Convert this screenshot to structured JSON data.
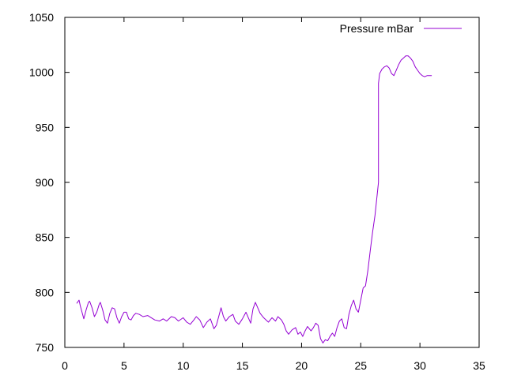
{
  "chart_data": {
    "type": "line",
    "xlim": [
      0,
      35
    ],
    "ylim": [
      750,
      1050
    ],
    "xticks": [
      0,
      5,
      10,
      15,
      20,
      25,
      30,
      35
    ],
    "yticks": [
      750,
      800,
      850,
      900,
      950,
      1000,
      1050
    ],
    "grid": false,
    "legend_position": "top-right",
    "series": [
      {
        "name": "Pressure mBar",
        "color": "#9400d3",
        "points": [
          [
            1.0,
            790
          ],
          [
            1.2,
            793
          ],
          [
            1.3,
            788
          ],
          [
            1.5,
            780
          ],
          [
            1.6,
            776
          ],
          [
            1.8,
            784
          ],
          [
            2.0,
            791
          ],
          [
            2.1,
            792
          ],
          [
            2.3,
            786
          ],
          [
            2.5,
            778
          ],
          [
            2.7,
            782
          ],
          [
            2.9,
            789
          ],
          [
            3.0,
            791
          ],
          [
            3.2,
            784
          ],
          [
            3.4,
            775
          ],
          [
            3.6,
            772
          ],
          [
            3.8,
            781
          ],
          [
            4.0,
            786
          ],
          [
            4.2,
            785
          ],
          [
            4.4,
            777
          ],
          [
            4.6,
            772
          ],
          [
            4.8,
            778
          ],
          [
            5.0,
            782
          ],
          [
            5.2,
            782
          ],
          [
            5.4,
            776
          ],
          [
            5.6,
            775
          ],
          [
            5.8,
            779
          ],
          [
            6.0,
            781
          ],
          [
            6.3,
            780
          ],
          [
            6.6,
            778
          ],
          [
            7.0,
            779
          ],
          [
            7.3,
            777
          ],
          [
            7.6,
            775
          ],
          [
            8.0,
            774
          ],
          [
            8.3,
            776
          ],
          [
            8.6,
            774
          ],
          [
            9.0,
            778
          ],
          [
            9.3,
            777
          ],
          [
            9.6,
            774
          ],
          [
            10.0,
            777
          ],
          [
            10.3,
            773
          ],
          [
            10.6,
            771
          ],
          [
            10.9,
            775
          ],
          [
            11.1,
            778
          ],
          [
            11.4,
            775
          ],
          [
            11.7,
            768
          ],
          [
            12.0,
            773
          ],
          [
            12.3,
            776
          ],
          [
            12.6,
            767
          ],
          [
            12.8,
            770
          ],
          [
            13.0,
            778
          ],
          [
            13.2,
            786
          ],
          [
            13.4,
            778
          ],
          [
            13.6,
            774
          ],
          [
            13.9,
            778
          ],
          [
            14.2,
            780
          ],
          [
            14.4,
            774
          ],
          [
            14.7,
            771
          ],
          [
            15.0,
            776
          ],
          [
            15.3,
            782
          ],
          [
            15.5,
            777
          ],
          [
            15.7,
            772
          ],
          [
            15.9,
            785
          ],
          [
            16.1,
            791
          ],
          [
            16.3,
            786
          ],
          [
            16.5,
            781
          ],
          [
            16.8,
            777
          ],
          [
            17.0,
            775
          ],
          [
            17.2,
            773
          ],
          [
            17.5,
            777
          ],
          [
            17.8,
            774
          ],
          [
            18.0,
            778
          ],
          [
            18.3,
            775
          ],
          [
            18.5,
            771
          ],
          [
            18.7,
            765
          ],
          [
            18.9,
            762
          ],
          [
            19.2,
            766
          ],
          [
            19.5,
            768
          ],
          [
            19.7,
            762
          ],
          [
            19.9,
            764
          ],
          [
            20.1,
            760
          ],
          [
            20.3,
            765
          ],
          [
            20.5,
            769
          ],
          [
            20.8,
            765
          ],
          [
            21.0,
            768
          ],
          [
            21.2,
            772
          ],
          [
            21.4,
            770
          ],
          [
            21.6,
            758
          ],
          [
            21.8,
            754
          ],
          [
            22.0,
            757
          ],
          [
            22.2,
            756
          ],
          [
            22.4,
            760
          ],
          [
            22.6,
            763
          ],
          [
            22.8,
            760
          ],
          [
            23.0,
            768
          ],
          [
            23.2,
            774
          ],
          [
            23.4,
            776
          ],
          [
            23.6,
            768
          ],
          [
            23.8,
            767
          ],
          [
            24.0,
            780
          ],
          [
            24.2,
            788
          ],
          [
            24.4,
            793
          ],
          [
            24.6,
            785
          ],
          [
            24.8,
            782
          ],
          [
            25.0,
            793
          ],
          [
            25.2,
            804
          ],
          [
            25.4,
            806
          ],
          [
            25.6,
            820
          ],
          [
            25.8,
            838
          ],
          [
            26.0,
            855
          ],
          [
            26.2,
            870
          ],
          [
            26.5,
            900
          ],
          [
            26.5,
            990
          ],
          [
            26.6,
            999
          ],
          [
            26.8,
            1003
          ],
          [
            27.0,
            1005
          ],
          [
            27.2,
            1006
          ],
          [
            27.4,
            1004
          ],
          [
            27.6,
            999
          ],
          [
            27.8,
            997
          ],
          [
            28.0,
            1002
          ],
          [
            28.2,
            1007
          ],
          [
            28.4,
            1011
          ],
          [
            28.6,
            1013
          ],
          [
            28.8,
            1015
          ],
          [
            29.0,
            1015
          ],
          [
            29.2,
            1013
          ],
          [
            29.4,
            1010
          ],
          [
            29.6,
            1005
          ],
          [
            29.8,
            1002
          ],
          [
            30.0,
            999
          ],
          [
            30.2,
            997
          ],
          [
            30.4,
            996
          ],
          [
            30.6,
            997
          ],
          [
            30.8,
            997
          ],
          [
            31.0,
            997
          ]
        ]
      }
    ]
  }
}
